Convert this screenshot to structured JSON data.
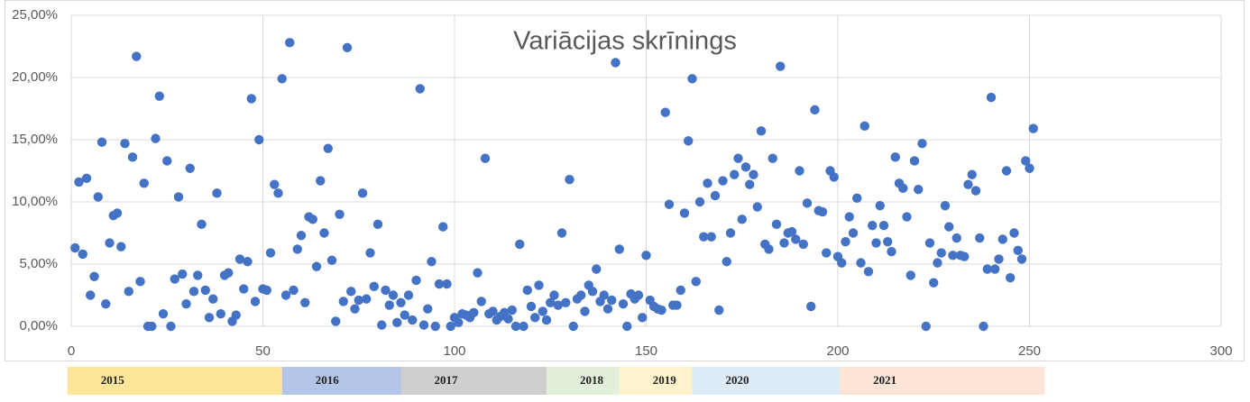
{
  "chart_data": {
    "type": "scatter",
    "title": "Variācijas skrīnings",
    "x": [
      1,
      2,
      3,
      4,
      5,
      6,
      7,
      8,
      9,
      10,
      11,
      12,
      13,
      14,
      15,
      16,
      17,
      18,
      19,
      20,
      21,
      22,
      23,
      24,
      25,
      26,
      27,
      28,
      29,
      30,
      31,
      32,
      33,
      34,
      35,
      36,
      37,
      38,
      39,
      40,
      41,
      42,
      43,
      44,
      45,
      46,
      47,
      48,
      49,
      50,
      51,
      52,
      53,
      54,
      55,
      56,
      57,
      58,
      59,
      60,
      61,
      62,
      63,
      64,
      65,
      66,
      67,
      68,
      69,
      70,
      71,
      72,
      73,
      74,
      75,
      76,
      77,
      78,
      79,
      80,
      81,
      82,
      83,
      84,
      85,
      86,
      87,
      88,
      89,
      90,
      91,
      92,
      93,
      94,
      95,
      96,
      97,
      98,
      99,
      100,
      101,
      102,
      103,
      104,
      105,
      106,
      107,
      108,
      109,
      110,
      111,
      112,
      113,
      114,
      115,
      116,
      117,
      118,
      119,
      120,
      121,
      122,
      123,
      124,
      125,
      126,
      127,
      128,
      129,
      130,
      131,
      132,
      133,
      134,
      135,
      136,
      137,
      138,
      139,
      140,
      141,
      142,
      143,
      144,
      145,
      146,
      147,
      148,
      149,
      150,
      151,
      152,
      153,
      154,
      155,
      156,
      157,
      158,
      159,
      160,
      161,
      162,
      163,
      164,
      165,
      166,
      167,
      168,
      169,
      170,
      171,
      172,
      173,
      174,
      175,
      176,
      177,
      178,
      179,
      180,
      181,
      182,
      183,
      184,
      185,
      186,
      187,
      188,
      189,
      190,
      191,
      192,
      193,
      194,
      195,
      196,
      197,
      198,
      199,
      200,
      201,
      202,
      203,
      204,
      205,
      206,
      207,
      208,
      209,
      210,
      211,
      212,
      213,
      214,
      215,
      216,
      217,
      218,
      219,
      220,
      221,
      222,
      223,
      224,
      225,
      226,
      227,
      228,
      229,
      230,
      231,
      232,
      233,
      234,
      235,
      236,
      237,
      238,
      239,
      240,
      241,
      242,
      243,
      244,
      245,
      246,
      247,
      248,
      249,
      250,
      251
    ],
    "values": [
      6.3,
      11.6,
      5.8,
      11.9,
      2.5,
      4.0,
      10.4,
      14.8,
      1.8,
      6.7,
      8.9,
      9.1,
      6.4,
      14.7,
      2.8,
      13.6,
      21.7,
      3.6,
      11.5,
      0,
      0,
      15.1,
      18.5,
      1.0,
      13.3,
      0,
      3.8,
      10.4,
      4.2,
      1.8,
      12.7,
      2.8,
      4.1,
      8.2,
      2.9,
      0.7,
      2.2,
      10.7,
      1.0,
      4.1,
      4.3,
      0.4,
      0.9,
      5.4,
      3.0,
      5.2,
      18.3,
      2.0,
      15.0,
      3.0,
      2.9,
      5.9,
      11.4,
      10.7,
      19.9,
      2.5,
      22.8,
      2.9,
      6.2,
      7.3,
      1.9,
      8.8,
      8.6,
      4.8,
      11.7,
      7.5,
      14.3,
      5.3,
      0.4,
      9.0,
      2.0,
      22.4,
      2.8,
      1.4,
      2.1,
      10.7,
      2.2,
      5.9,
      3.2,
      8.2,
      0.1,
      2.9,
      1.7,
      2.5,
      0.3,
      1.9,
      0.9,
      2.5,
      0.5,
      3.7,
      19.1,
      0.1,
      1.4,
      5.2,
      0,
      3.4,
      8.0,
      3.4,
      0,
      0.7,
      0.3,
      1.0,
      0.9,
      0.7,
      1.1,
      4.3,
      2.0,
      13.5,
      1.0,
      1.2,
      0.5,
      0.8,
      1.1,
      0.6,
      1.3,
      0,
      6.6,
      0,
      2.9,
      1.6,
      0.7,
      3.3,
      1.2,
      0.5,
      1.9,
      2.5,
      1.7,
      7.5,
      1.9,
      11.8,
      0,
      2.2,
      2.5,
      1.2,
      3.3,
      2.8,
      4.6,
      2.0,
      2.5,
      1.4,
      2.1,
      21.2,
      6.2,
      1.8,
      0,
      2.6,
      2.2,
      2.5,
      0.7,
      5.7,
      2.1,
      1.6,
      1.4,
      1.3,
      17.2,
      9.8,
      1.7,
      1.7,
      2.9,
      9.1,
      14.9,
      19.9,
      3.6,
      10.0,
      7.2,
      11.5,
      7.2,
      10.5,
      1.3,
      11.7,
      5.2,
      7.5,
      12.2,
      13.5,
      8.6,
      12.8,
      11.4,
      12.2,
      9.6,
      15.7,
      6.6,
      6.2,
      13.5,
      8.2,
      20.9,
      6.7,
      7.5,
      7.6,
      7.0,
      12.5,
      6.6,
      9.9,
      1.6,
      17.4,
      9.3,
      9.2,
      5.9,
      12.5,
      12.0,
      5.6,
      5.1,
      6.8,
      8.8,
      7.5,
      10.3,
      5.1,
      16.1,
      4.4,
      8.1,
      6.7,
      9.7,
      8.1,
      6.8,
      6.0,
      13.6,
      11.5,
      11.1,
      8.8,
      4.1,
      13.3,
      11.0,
      14.7,
      0,
      6.7,
      3.5,
      5.1,
      5.9,
      9.7,
      8.0,
      5.7,
      7.1,
      5.7,
      5.6,
      11.4,
      12.2,
      10.9,
      7.1,
      0,
      4.6,
      18.4,
      4.6,
      5.4,
      7.0,
      12.5,
      3.9,
      7.5,
      6.1,
      5.4,
      13.3,
      12.7,
      15.9
    ],
    "color": "#4472c4",
    "xlim": [
      0,
      300
    ],
    "xticks": [
      0,
      50,
      100,
      150,
      200,
      250,
      300
    ],
    "ylim": [
      0,
      25
    ],
    "yticks": [
      {
        "value": 0,
        "label": "0,00%"
      },
      {
        "value": 5,
        "label": "5,00%"
      },
      {
        "value": 10,
        "label": "10,00%"
      },
      {
        "value": 15,
        "label": "15,00%"
      },
      {
        "value": 20,
        "label": "20,00%"
      },
      {
        "value": 25,
        "label": "25,00%"
      }
    ],
    "grid": true,
    "periods": [
      {
        "label": "2015",
        "start": -1,
        "end": 55,
        "color": "#fde59a"
      },
      {
        "label": "2016",
        "start": 55,
        "end": 86,
        "color": "#b4c6e7"
      },
      {
        "label": "2017",
        "start": 86,
        "end": 124,
        "color": "#d0cece"
      },
      {
        "label": "2018",
        "start": 124,
        "end": 143,
        "color": "#e2efda"
      },
      {
        "label": "2019",
        "start": 143,
        "end": 162,
        "color": "#fff2cc"
      },
      {
        "label": "2020",
        "start": 162,
        "end": 200.5,
        "color": "#ddebf7"
      },
      {
        "label": "2021",
        "start": 200.5,
        "end": 254,
        "color": "#fce4d6"
      }
    ]
  }
}
